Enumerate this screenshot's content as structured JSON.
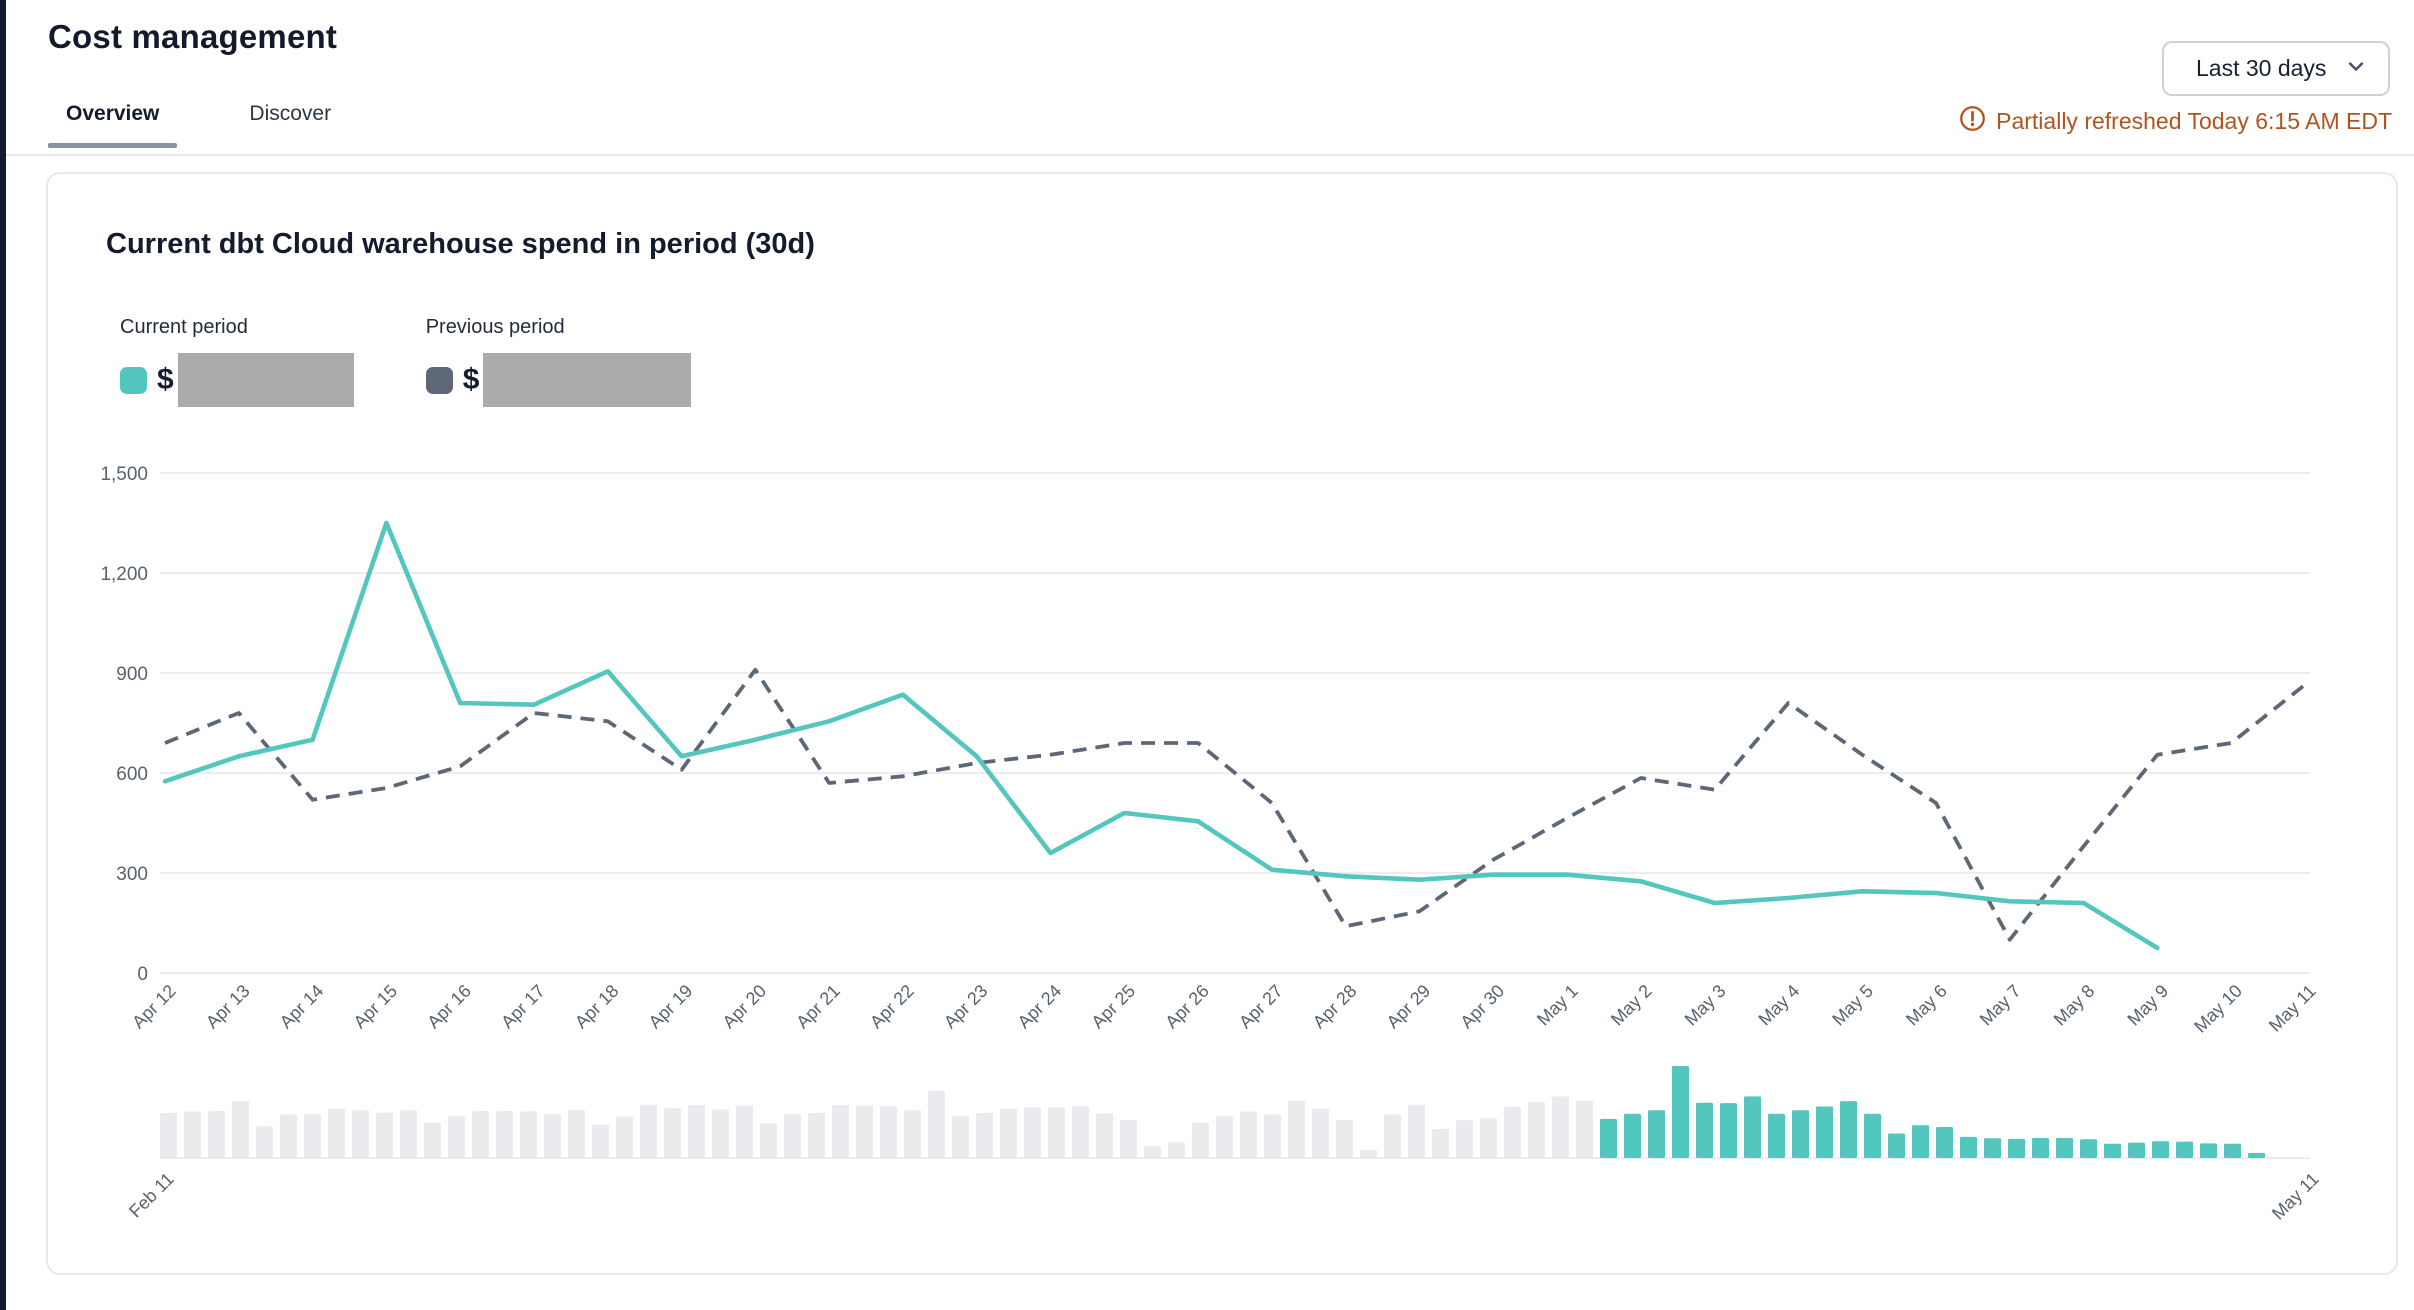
{
  "page": {
    "title": "Cost management",
    "tabs": [
      {
        "label": "Overview",
        "active": true
      },
      {
        "label": "Discover",
        "active": false
      }
    ],
    "range_selector": {
      "value": "Last 30 days",
      "icon": "chevron-down-icon"
    },
    "refresh_status": {
      "icon": "alert-circle-icon",
      "text": "Partially refreshed Today 6:15 AM EDT"
    }
  },
  "card": {
    "title": "Current dbt Cloud warehouse spend in period (30d)",
    "legend": [
      {
        "label": "Current period",
        "currency": "$",
        "value_redacted": true,
        "swatch_color": "#53c6bd"
      },
      {
        "label": "Previous period",
        "currency": "$",
        "value_redacted": true,
        "swatch_color": "#5d6775"
      }
    ]
  },
  "colors": {
    "accent_teal": "#53c6bd",
    "slate_dashed": "#5d6775",
    "gridline": "#ededf0",
    "axis_label": "#59616f",
    "bar_unselected": "#e9ebee",
    "warning_orange": "#b0541f",
    "redaction_gray": "#ababab",
    "ink": "#141b2d"
  },
  "chart_data": [
    {
      "type": "line",
      "title": "Current dbt Cloud warehouse spend in period (30d)",
      "grid": "horizontal",
      "legend_position": "top-left",
      "ylim": [
        0,
        1500
      ],
      "ytick_step": 300,
      "yticks": [
        "0",
        "300",
        "600",
        "900",
        "1,200",
        "1,500"
      ],
      "categories": [
        "Apr 12",
        "Apr 13",
        "Apr 14",
        "Apr 15",
        "Apr 16",
        "Apr 17",
        "Apr 18",
        "Apr 19",
        "Apr 20",
        "Apr 21",
        "Apr 22",
        "Apr 23",
        "Apr 24",
        "Apr 25",
        "Apr 26",
        "Apr 27",
        "Apr 28",
        "Apr 29",
        "Apr 30",
        "May 1",
        "May 2",
        "May 3",
        "May 4",
        "May 5",
        "May 6",
        "May 7",
        "May 8",
        "May 9",
        "May 10",
        "May 11"
      ],
      "series": [
        {
          "name": "Current period",
          "style": "solid",
          "color": "#53c6bd",
          "values": [
            575,
            650,
            700,
            1350,
            810,
            805,
            905,
            650,
            700,
            755,
            835,
            650,
            360,
            480,
            455,
            310,
            290,
            280,
            295,
            295,
            275,
            210,
            225,
            245,
            240,
            215,
            210,
            75,
            null,
            null
          ]
        },
        {
          "name": "Previous period",
          "style": "dashed",
          "color": "#5d6775",
          "values": [
            690,
            780,
            520,
            555,
            620,
            780,
            755,
            610,
            910,
            570,
            590,
            630,
            655,
            690,
            690,
            510,
            140,
            185,
            340,
            465,
            585,
            550,
            810,
            655,
            510,
            100,
            380,
            655,
            690,
            865
          ]
        }
      ]
    },
    {
      "type": "bar",
      "role": "time-range-brush",
      "start_label": "Feb 11",
      "end_label": "May 11",
      "selected_range": {
        "from": "Apr 12",
        "to": "May 11"
      },
      "selected_from_index": 60,
      "bar_colors": {
        "unselected": "#e9ebee",
        "selected": "#53c6bd"
      },
      "values": [
        660,
        680,
        690,
        835,
        465,
        640,
        645,
        720,
        700,
        665,
        700,
        520,
        615,
        690,
        690,
        685,
        645,
        705,
        490,
        610,
        780,
        730,
        775,
        710,
        770,
        510,
        645,
        660,
        775,
        770,
        760,
        700,
        985,
        620,
        660,
        725,
        745,
        745,
        760,
        655,
        560,
        175,
        230,
        520,
        615,
        680,
        640,
        840,
        720,
        560,
        120,
        640,
        780,
        425,
        555,
        580,
        750,
        820,
        905,
        840,
        575,
        650,
        700,
        1350,
        810,
        805,
        905,
        650,
        700,
        755,
        835,
        650,
        360,
        480,
        455,
        310,
        290,
        280,
        295,
        295,
        275,
        210,
        225,
        245,
        240,
        215,
        210,
        75,
        null,
        null
      ]
    }
  ]
}
